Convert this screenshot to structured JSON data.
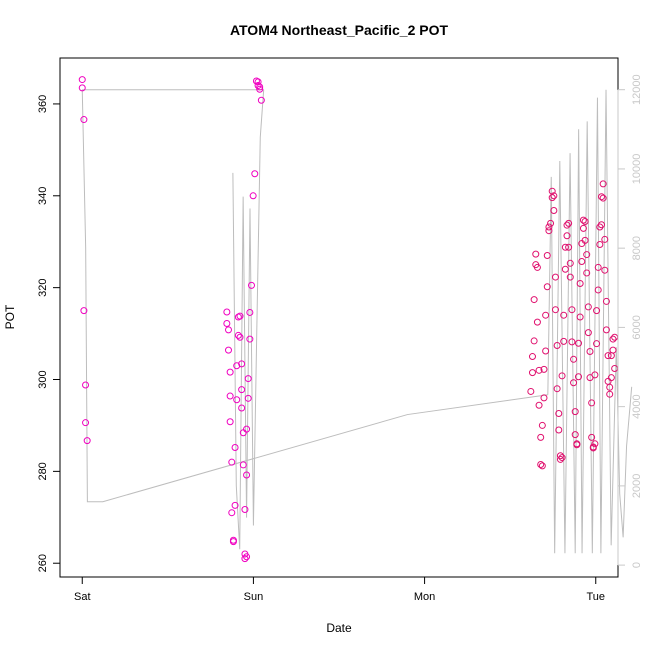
{
  "chart_data": {
    "type": "scatter",
    "title": "ATOM4 Northeast_Pacific_2 POT",
    "xlabel": "Date",
    "ylabel": "POT",
    "x_ticks": [
      "Sat",
      "Sun",
      "Mon",
      "Tue"
    ],
    "x_range_days": [
      -0.13,
      3.13
    ],
    "ylim": [
      257,
      370
    ],
    "y_ticks": [
      260,
      280,
      300,
      320,
      340,
      360
    ],
    "ylim_right": [
      -300,
      12800
    ],
    "y_ticks_right": [
      0,
      2000,
      4000,
      6000,
      8000,
      10000,
      12000
    ],
    "right_axis_label": "",
    "colors": {
      "points": "#f000c0",
      "points_late": "#e0106e",
      "line": "#bdbdbd",
      "right_axis": "#c8c8c8"
    },
    "series": [
      {
        "points": [
          [
            0.0,
            365.3
          ],
          [
            0.0,
            363.5
          ],
          [
            0.01,
            356.6
          ],
          [
            0.01,
            315.0
          ],
          [
            0.02,
            298.8
          ],
          [
            0.02,
            290.6
          ],
          [
            0.03,
            286.7
          ],
          [
            0.88,
            314.7
          ],
          [
            0.88,
            312.2
          ],
          [
            0.89,
            310.8
          ],
          [
            0.89,
            306.4
          ],
          [
            0.9,
            301.6
          ],
          [
            0.9,
            296.4
          ],
          [
            0.9,
            290.8
          ],
          [
            0.91,
            282.0
          ],
          [
            0.91,
            271.0
          ],
          [
            0.92,
            265.0
          ],
          [
            0.92,
            264.7
          ],
          [
            0.93,
            272.6
          ],
          [
            0.93,
            285.2
          ],
          [
            0.94,
            295.6
          ],
          [
            0.94,
            303.0
          ],
          [
            0.95,
            309.6
          ],
          [
            0.95,
            313.6
          ],
          [
            0.96,
            313.8
          ],
          [
            0.96,
            309.2
          ],
          [
            0.97,
            303.4
          ],
          [
            0.97,
            297.8
          ],
          [
            0.97,
            293.8
          ],
          [
            0.98,
            288.4
          ],
          [
            0.98,
            281.4
          ],
          [
            0.99,
            271.7
          ],
          [
            0.99,
            262.0
          ],
          [
            0.99,
            261.0
          ],
          [
            1.0,
            261.4
          ],
          [
            1.0,
            279.2
          ],
          [
            1.0,
            289.2
          ],
          [
            1.01,
            295.9
          ],
          [
            1.01,
            300.2
          ],
          [
            1.02,
            308.8
          ],
          [
            1.02,
            314.6
          ],
          [
            1.03,
            320.5
          ],
          [
            1.04,
            340.0
          ],
          [
            1.05,
            344.8
          ],
          [
            1.06,
            365.0
          ],
          [
            1.07,
            364.8
          ],
          [
            1.07,
            364.0
          ],
          [
            1.08,
            363.7
          ],
          [
            1.08,
            363.2
          ],
          [
            1.09,
            360.8
          ]
        ]
      },
      {
        "points": [
          [
            2.73,
            297.4
          ],
          [
            2.74,
            301.5
          ],
          [
            2.74,
            305.0
          ],
          [
            2.75,
            308.4
          ],
          [
            2.75,
            317.4
          ],
          [
            2.76,
            325.0
          ],
          [
            2.76,
            327.3
          ],
          [
            2.77,
            324.4
          ],
          [
            2.77,
            312.5
          ],
          [
            2.78,
            302.0
          ],
          [
            2.78,
            294.4
          ],
          [
            2.79,
            287.4
          ],
          [
            2.79,
            281.5
          ],
          [
            2.8,
            281.2
          ],
          [
            2.8,
            290.0
          ],
          [
            2.81,
            296.0
          ],
          [
            2.81,
            302.2
          ],
          [
            2.82,
            306.2
          ],
          [
            2.82,
            314.0
          ],
          [
            2.83,
            320.2
          ],
          [
            2.83,
            327.0
          ],
          [
            2.84,
            332.4
          ],
          [
            2.84,
            333.2
          ],
          [
            2.85,
            334.0
          ],
          [
            2.86,
            339.6
          ],
          [
            2.86,
            341.0
          ],
          [
            2.87,
            340.0
          ],
          [
            2.87,
            336.8
          ],
          [
            2.88,
            322.3
          ],
          [
            2.88,
            315.2
          ],
          [
            2.89,
            307.4
          ],
          [
            2.89,
            298.0
          ],
          [
            2.9,
            292.6
          ],
          [
            2.9,
            289.0
          ],
          [
            2.91,
            283.4
          ],
          [
            2.91,
            282.6
          ],
          [
            2.92,
            283.0
          ],
          [
            2.92,
            300.8
          ],
          [
            2.93,
            308.3
          ],
          [
            2.93,
            314.0
          ],
          [
            2.94,
            324.0
          ],
          [
            2.94,
            328.8
          ],
          [
            2.95,
            331.3
          ],
          [
            2.95,
            333.6
          ],
          [
            2.96,
            334.0
          ],
          [
            2.96,
            328.8
          ],
          [
            2.97,
            325.3
          ],
          [
            2.97,
            322.3
          ],
          [
            2.98,
            315.2
          ],
          [
            2.98,
            308.2
          ],
          [
            2.99,
            304.4
          ],
          [
            2.99,
            299.3
          ],
          [
            3.0,
            293.0
          ],
          [
            3.0,
            288.0
          ],
          [
            3.01,
            286.0
          ],
          [
            3.01,
            285.8
          ],
          [
            3.02,
            300.6
          ],
          [
            3.02,
            307.9
          ],
          [
            3.03,
            313.6
          ],
          [
            3.03,
            320.9
          ],
          [
            3.04,
            325.7
          ],
          [
            3.04,
            329.6
          ],
          [
            3.05,
            332.9
          ],
          [
            3.05,
            334.7
          ],
          [
            3.06,
            334.4
          ],
          [
            3.06,
            330.3
          ],
          [
            3.07,
            327.2
          ],
          [
            3.07,
            323.2
          ],
          [
            3.08,
            315.8
          ],
          [
            3.08,
            310.2
          ],
          [
            3.09,
            306.1
          ],
          [
            3.09,
            300.4
          ],
          [
            3.1,
            294.9
          ],
          [
            3.1,
            287.4
          ],
          [
            3.11,
            285.3
          ],
          [
            3.11,
            285.1
          ],
          [
            3.12,
            286.0
          ],
          [
            3.12,
            301.0
          ],
          [
            3.13,
            307.8
          ],
          [
            3.13,
            315.0
          ],
          [
            3.14,
            319.5
          ],
          [
            3.14,
            324.4
          ],
          [
            3.15,
            329.4
          ],
          [
            3.15,
            333.2
          ],
          [
            3.16,
            333.7
          ],
          [
            3.16,
            339.8
          ],
          [
            3.17,
            342.6
          ],
          [
            3.17,
            339.5
          ],
          [
            3.18,
            330.5
          ],
          [
            3.18,
            323.8
          ],
          [
            3.19,
            317.0
          ],
          [
            3.19,
            310.8
          ],
          [
            3.2,
            305.2
          ],
          [
            3.2,
            299.6
          ],
          [
            3.21,
            298.3
          ],
          [
            3.21,
            296.8
          ],
          [
            3.22,
            300.4
          ],
          [
            3.22,
            305.2
          ],
          [
            3.23,
            306.4
          ],
          [
            3.23,
            308.8
          ],
          [
            3.24,
            309.2
          ],
          [
            3.24,
            302.4
          ]
        ]
      }
    ]
  }
}
